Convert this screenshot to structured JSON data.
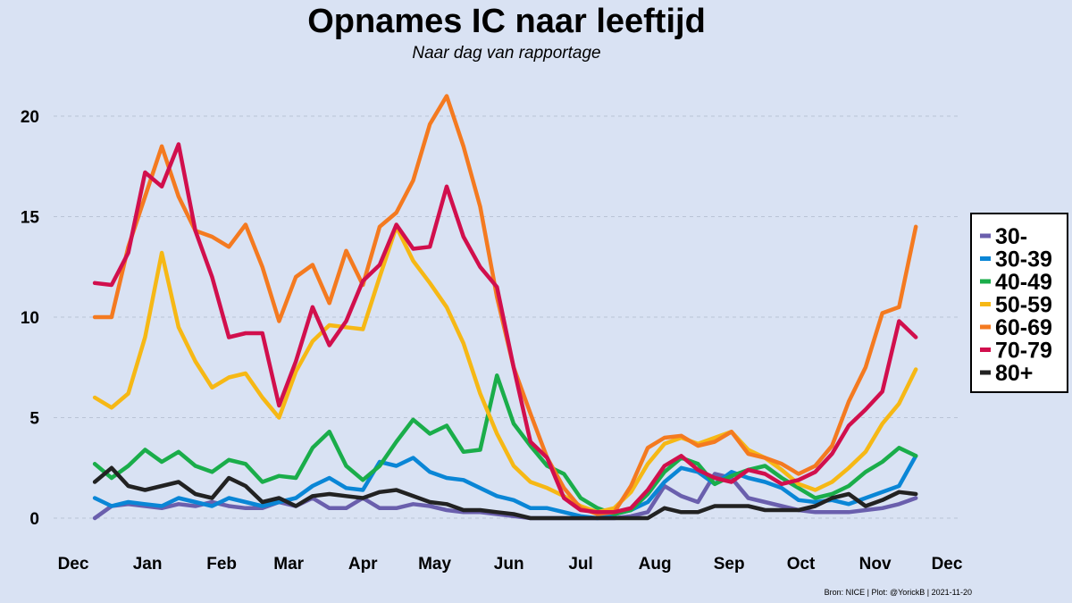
{
  "chart_data": {
    "type": "line",
    "title": "Opnames IC naar leeftijd",
    "subtitle": "Naar dag van rapportage",
    "source": "Bron: NICE | Plot: @YorickB  |  2021-11-20",
    "xlabel": "",
    "ylabel": "",
    "ylim": [
      0,
      22
    ],
    "yticks": [
      0,
      5,
      10,
      15,
      20
    ],
    "xticks": [
      "Dec",
      "Jan",
      "Feb",
      "Mar",
      "Apr",
      "May",
      "Jun",
      "Jul",
      "Aug",
      "Sep",
      "Oct",
      "Nov",
      "Dec"
    ],
    "x_day_offsets": [
      0,
      31,
      62,
      90,
      121,
      151,
      182,
      212,
      243,
      274,
      304,
      335,
      365
    ],
    "x_domain_days": [
      0,
      365
    ],
    "grid": "horizontal-dashed",
    "legend_position": "right",
    "series": [
      {
        "name": "30-",
        "color": "#6a5fad",
        "x": [
          9,
          16,
          23,
          30,
          37,
          44,
          51,
          58,
          65,
          72,
          79,
          86,
          93,
          100,
          107,
          114,
          121,
          128,
          135,
          142,
          149,
          156,
          163,
          170,
          177,
          184,
          191,
          198,
          205,
          212,
          219,
          226,
          233,
          240,
          247,
          254,
          261,
          268,
          275,
          282,
          289,
          296,
          303,
          310,
          317,
          324,
          331,
          338,
          345,
          352
        ],
        "values": [
          0,
          0.6,
          0.7,
          0.6,
          0.5,
          0.7,
          0.6,
          0.8,
          0.6,
          0.5,
          0.5,
          0.8,
          0.6,
          1.0,
          0.5,
          0.5,
          1.0,
          0.5,
          0.5,
          0.7,
          0.6,
          0.4,
          0.3,
          0.3,
          0.2,
          0.1,
          0,
          0,
          0,
          0,
          0,
          0,
          0.1,
          0.3,
          1.6,
          1.1,
          0.8,
          2.2,
          2.0,
          1.0,
          0.8,
          0.6,
          0.4,
          0.3,
          0.3,
          0.3,
          0.4,
          0.5,
          0.7,
          1.0
        ]
      },
      {
        "name": "30-39",
        "color": "#0a86d6",
        "x": [
          9,
          16,
          23,
          30,
          37,
          44,
          51,
          58,
          65,
          72,
          79,
          86,
          93,
          100,
          107,
          114,
          121,
          128,
          135,
          142,
          149,
          156,
          163,
          170,
          177,
          184,
          191,
          198,
          205,
          212,
          219,
          226,
          233,
          240,
          247,
          254,
          261,
          268,
          275,
          282,
          289,
          296,
          303,
          310,
          317,
          324,
          331,
          338,
          345,
          352
        ],
        "values": [
          1.0,
          0.6,
          0.8,
          0.7,
          0.6,
          1.0,
          0.8,
          0.6,
          1.0,
          0.8,
          0.6,
          0.8,
          1.0,
          1.6,
          2.0,
          1.5,
          1.4,
          2.8,
          2.6,
          3.0,
          2.3,
          2.0,
          1.9,
          1.5,
          1.1,
          0.9,
          0.5,
          0.5,
          0.3,
          0.1,
          0,
          0.2,
          0.4,
          0.8,
          1.8,
          2.5,
          2.3,
          1.7,
          2.3,
          2.0,
          1.8,
          1.5,
          0.9,
          0.8,
          0.9,
          0.7,
          1.0,
          1.3,
          1.6,
          3.1
        ]
      },
      {
        "name": "40-49",
        "color": "#1aad4a",
        "x": [
          9,
          16,
          23,
          30,
          37,
          44,
          51,
          58,
          65,
          72,
          79,
          86,
          93,
          100,
          107,
          114,
          121,
          128,
          135,
          142,
          149,
          156,
          163,
          170,
          177,
          184,
          191,
          198,
          205,
          212,
          219,
          226,
          233,
          240,
          247,
          254,
          261,
          268,
          275,
          282,
          289,
          296,
          303,
          310,
          317,
          324,
          331,
          338,
          345,
          352
        ],
        "values": [
          2.7,
          2.0,
          2.6,
          3.4,
          2.8,
          3.3,
          2.6,
          2.3,
          2.9,
          2.7,
          1.8,
          2.1,
          2.0,
          3.5,
          4.3,
          2.6,
          1.9,
          2.6,
          3.8,
          4.9,
          4.2,
          4.6,
          3.3,
          3.4,
          7.1,
          4.7,
          3.6,
          2.6,
          2.2,
          1.0,
          0.5,
          0.2,
          0.4,
          1.2,
          2.3,
          3.0,
          2.7,
          1.7,
          2.1,
          2.4,
          2.6,
          2.0,
          1.5,
          1.0,
          1.2,
          1.6,
          2.3,
          2.8,
          3.5,
          3.1
        ]
      },
      {
        "name": "50-59",
        "color": "#f6b815",
        "x": [
          9,
          16,
          23,
          30,
          37,
          44,
          51,
          58,
          65,
          72,
          79,
          86,
          93,
          100,
          107,
          114,
          121,
          128,
          135,
          142,
          149,
          156,
          163,
          170,
          177,
          184,
          191,
          198,
          205,
          212,
          219,
          226,
          233,
          240,
          247,
          254,
          261,
          268,
          275,
          282,
          289,
          296,
          303,
          310,
          317,
          324,
          331,
          338,
          345,
          352
        ],
        "values": [
          6.0,
          5.5,
          6.2,
          9.0,
          13.2,
          9.5,
          7.8,
          6.5,
          7.0,
          7.2,
          6.0,
          5.0,
          7.3,
          8.8,
          9.6,
          9.5,
          9.4,
          12.0,
          14.5,
          12.8,
          11.7,
          10.5,
          8.7,
          6.2,
          4.2,
          2.6,
          1.8,
          1.5,
          1.1,
          0.6,
          0.3,
          0.5,
          1.3,
          2.7,
          3.7,
          4.0,
          3.7,
          4.0,
          4.3,
          3.4,
          3.0,
          2.4,
          1.7,
          1.4,
          1.8,
          2.5,
          3.3,
          4.7,
          5.7,
          7.4
        ]
      },
      {
        "name": "60-69",
        "color": "#f47a20",
        "x": [
          9,
          16,
          23,
          30,
          37,
          44,
          51,
          58,
          65,
          72,
          79,
          86,
          93,
          100,
          107,
          114,
          121,
          128,
          135,
          142,
          149,
          156,
          163,
          170,
          177,
          184,
          191,
          198,
          205,
          212,
          219,
          226,
          233,
          240,
          247,
          254,
          261,
          268,
          275,
          282,
          289,
          296,
          303,
          310,
          317,
          324,
          331,
          338,
          345,
          352
        ],
        "values": [
          10.0,
          10.0,
          13.5,
          16.0,
          18.5,
          16.0,
          14.3,
          14.0,
          13.5,
          14.6,
          12.5,
          9.8,
          12.0,
          12.6,
          10.7,
          13.3,
          11.6,
          14.5,
          15.2,
          16.8,
          19.6,
          21.0,
          18.5,
          15.5,
          11.0,
          7.5,
          5.2,
          3.0,
          1.5,
          0.5,
          0.2,
          0.3,
          1.6,
          3.5,
          4.0,
          4.1,
          3.6,
          3.8,
          4.3,
          3.2,
          3.0,
          2.7,
          2.2,
          2.6,
          3.6,
          5.8,
          7.5,
          10.2,
          10.5,
          14.5
        ]
      },
      {
        "name": "70-79",
        "color": "#d10f4d",
        "x": [
          9,
          16,
          23,
          30,
          37,
          44,
          51,
          58,
          65,
          72,
          79,
          86,
          93,
          100,
          107,
          114,
          121,
          128,
          135,
          142,
          149,
          156,
          163,
          170,
          177,
          184,
          191,
          198,
          205,
          212,
          219,
          226,
          233,
          240,
          247,
          254,
          261,
          268,
          275,
          282,
          289,
          296,
          303,
          310,
          317,
          324,
          331,
          338,
          345,
          352
        ],
        "values": [
          11.7,
          11.6,
          13.2,
          17.2,
          16.5,
          18.6,
          14.3,
          12.0,
          9.0,
          9.2,
          9.2,
          5.6,
          7.8,
          10.5,
          8.6,
          9.8,
          11.8,
          12.6,
          14.6,
          13.4,
          13.5,
          16.5,
          14.0,
          12.5,
          11.5,
          7.5,
          3.8,
          3.0,
          1.0,
          0.4,
          0.3,
          0.3,
          0.5,
          1.4,
          2.6,
          3.1,
          2.4,
          2.0,
          1.8,
          2.4,
          2.2,
          1.7,
          1.9,
          2.3,
          3.2,
          4.6,
          5.4,
          6.3,
          9.8,
          9.0
        ]
      },
      {
        "name": "80+",
        "color": "#222222",
        "x": [
          9,
          16,
          23,
          30,
          37,
          44,
          51,
          58,
          65,
          72,
          79,
          86,
          93,
          100,
          107,
          114,
          121,
          128,
          135,
          142,
          149,
          156,
          163,
          170,
          177,
          184,
          191,
          198,
          205,
          212,
          219,
          226,
          233,
          240,
          247,
          254,
          261,
          268,
          275,
          282,
          289,
          296,
          303,
          310,
          317,
          324,
          331,
          338,
          345,
          352
        ],
        "values": [
          1.8,
          2.5,
          1.6,
          1.4,
          1.6,
          1.8,
          1.2,
          1.0,
          2.0,
          1.6,
          0.8,
          1.0,
          0.6,
          1.1,
          1.2,
          1.1,
          1.0,
          1.3,
          1.4,
          1.1,
          0.8,
          0.7,
          0.4,
          0.4,
          0.3,
          0.2,
          0,
          0,
          0,
          0,
          0,
          0,
          0,
          0,
          0.5,
          0.3,
          0.3,
          0.6,
          0.6,
          0.6,
          0.4,
          0.4,
          0.4,
          0.6,
          1.0,
          1.2,
          0.6,
          0.9,
          1.3,
          1.2
        ]
      }
    ]
  }
}
